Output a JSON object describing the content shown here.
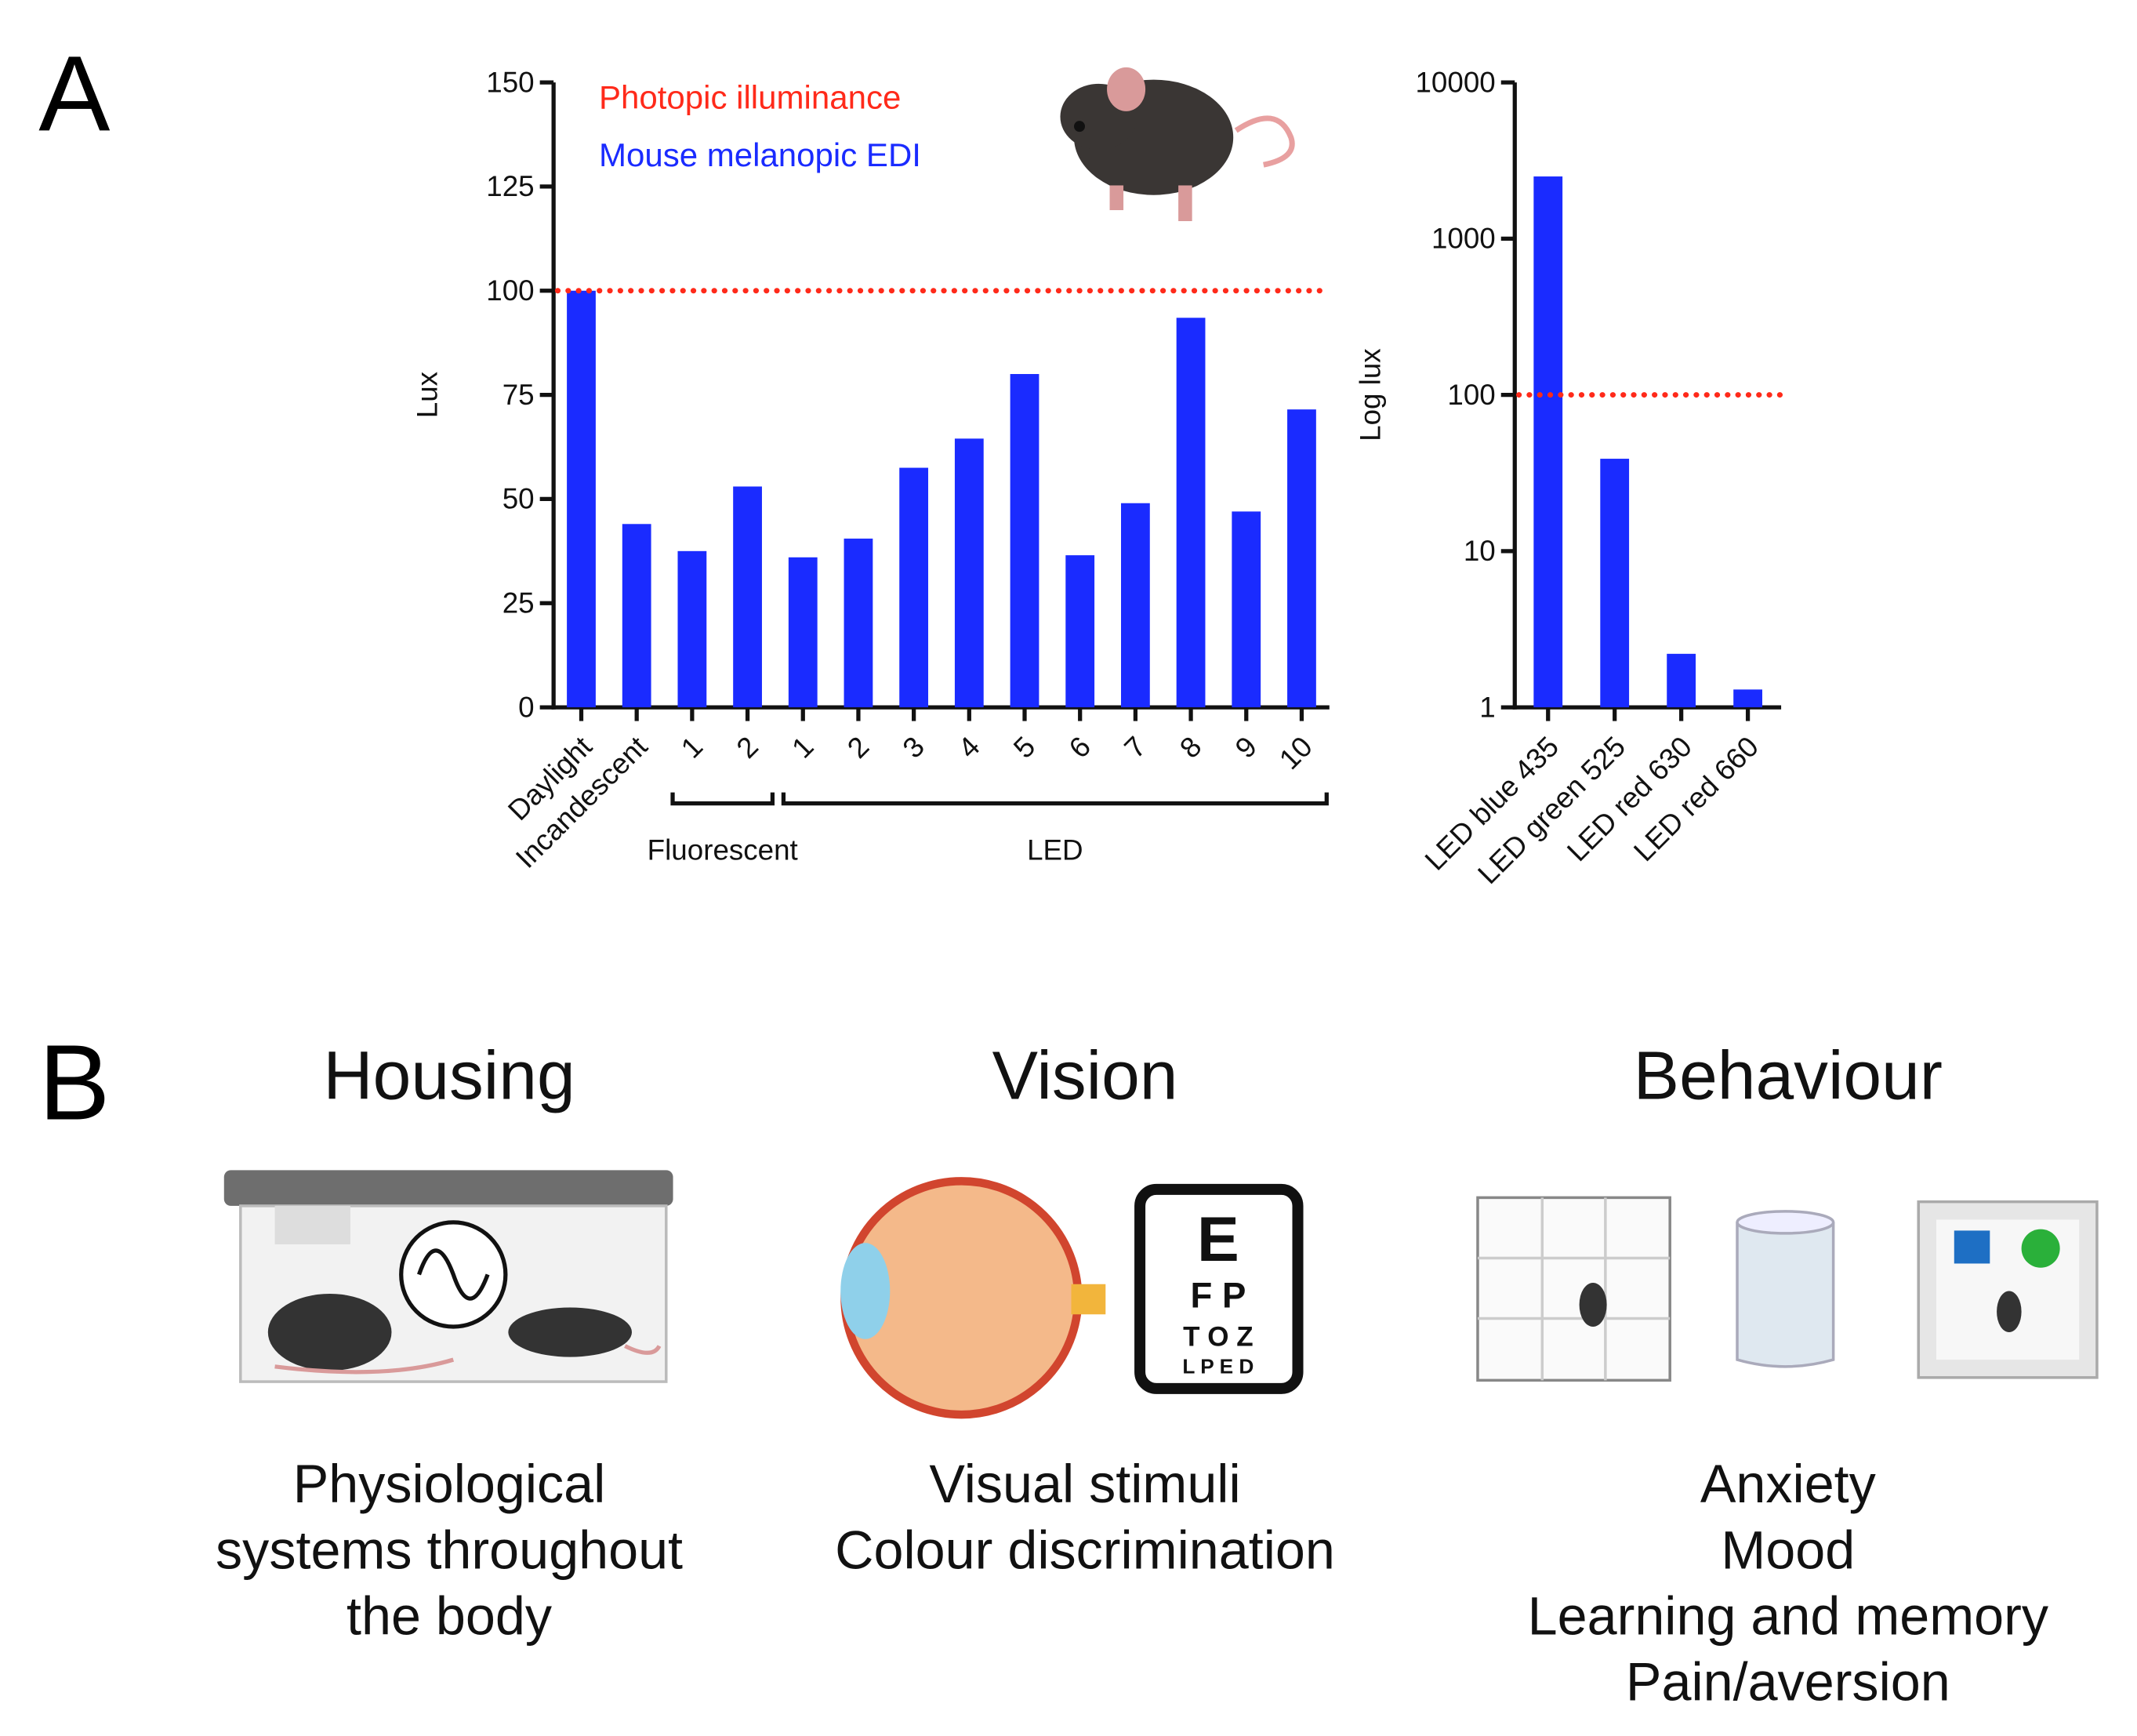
{
  "panel_a": {
    "label": "A"
  },
  "chart_data": [
    {
      "type": "bar",
      "y_label": "Lux",
      "categories": [
        "Daylight",
        "Incandescent",
        "1",
        "2",
        "1",
        "2",
        "3",
        "4",
        "5",
        "6",
        "7",
        "8",
        "9",
        "10"
      ],
      "series": [
        {
          "name": "Mouse melanopic EDI",
          "color": "#1a2bff",
          "values": [
            100,
            44,
            37.5,
            53,
            36,
            40.5,
            57.5,
            64.5,
            80,
            36.5,
            49,
            93.5,
            47,
            71.5
          ]
        }
      ],
      "reference_lines": [
        {
          "name": "Photopic illuminance",
          "value": 100,
          "color": "#ff2a1a"
        }
      ],
      "groups": [
        {
          "label": "Fluorescent",
          "start": 2,
          "end": 3
        },
        {
          "label": "LED",
          "start": 4,
          "end": 13
        }
      ],
      "ylim": [
        0,
        150
      ],
      "yticks": [
        0,
        25,
        50,
        75,
        100,
        125,
        150
      ]
    },
    {
      "type": "bar",
      "y_label": "Log lux",
      "log_y": true,
      "categories": [
        "LED blue 435",
        "LED green 525",
        "LED red 630",
        "LED red 660"
      ],
      "series": [
        {
          "color": "#1a2bff",
          "values": [
            2500,
            39,
            2.2,
            1.3
          ]
        }
      ],
      "reference_lines": [
        {
          "value": 100,
          "color": "#ff2a1a"
        }
      ],
      "ylim": [
        1,
        10000
      ],
      "yticks": [
        1,
        10,
        100,
        1000,
        10000
      ]
    }
  ],
  "panel_b": {
    "label": "B",
    "columns": [
      {
        "title": "Housing",
        "lines": [
          "Physiological",
          "systems throughout",
          "the body"
        ]
      },
      {
        "title": "Vision",
        "lines": [
          "Visual stimuli",
          "Colour discrimination"
        ]
      },
      {
        "title": "Behaviour",
        "lines": [
          "Anxiety",
          "Mood",
          "Learning and memory",
          "Pain/aversion"
        ]
      }
    ]
  }
}
